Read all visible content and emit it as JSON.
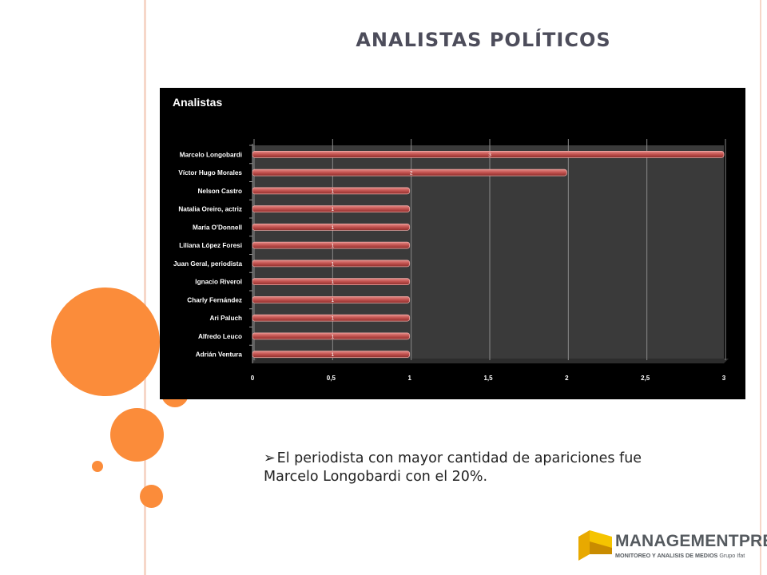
{
  "slide": {
    "title": "ANALISTAS POLÍTICOS",
    "bullet": "El periodista con mayor cantidad de apariciones fue Marcelo Longobardi con el 20%."
  },
  "chart_data": {
    "type": "bar",
    "orientation": "horizontal",
    "title": "Analistas",
    "categories": [
      "Marcelo Longobardi",
      "Víctor Hugo Morales",
      "Nelson Castro",
      "Natalia Oreiro, actriz",
      "María O'Donnell",
      "Liliana López Foresi",
      "Juan Geral, periodista",
      "Ignacio Riverol",
      "Charly Fernández",
      "Ari Paluch",
      "Alfredo Leuco",
      "Adrián Ventura"
    ],
    "values": [
      3,
      2,
      1,
      1,
      1,
      1,
      1,
      1,
      1,
      1,
      1,
      1
    ],
    "xlim": [
      0,
      3
    ],
    "xticks": [
      "0",
      "0,5",
      "1",
      "1,5",
      "2",
      "2,5",
      "3"
    ],
    "grid": true,
    "legend": "none",
    "bar_color": "#c0504d",
    "background": "#000000",
    "plot_background": "#3a3a3a"
  },
  "logo": {
    "name": "MANAGEMENTPRESS",
    "subtitle": "MONITOREO Y ANALISIS DE MEDIOS",
    "group": "Grupo Ifat"
  },
  "colors": {
    "accent": "#fb8c3a",
    "title": "#4d4d5b"
  }
}
